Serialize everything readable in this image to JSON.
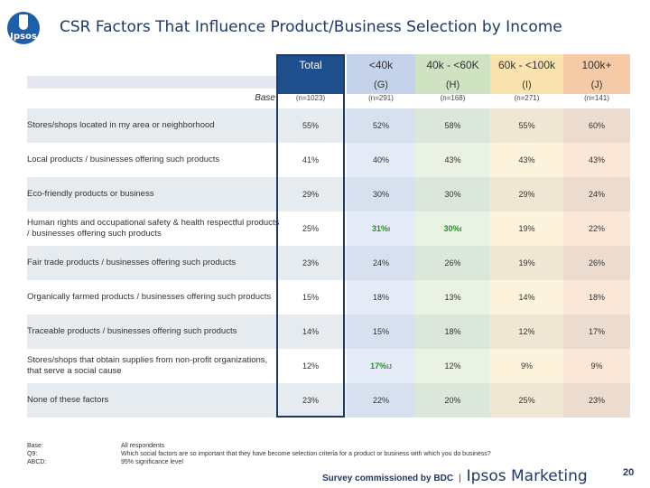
{
  "header": {
    "logo_text": "Ipsos",
    "title": "CSR Factors That Influence Product/Business Selection by Income"
  },
  "columns": [
    {
      "label": "Total",
      "letter": "",
      "base": "(n=1023)",
      "color": "#1f4e8c"
    },
    {
      "label": "<40k",
      "letter": "(G)",
      "base": "(n=291)",
      "color": "#c5d3ea"
    },
    {
      "label": "40k - <60K",
      "letter": "(H)",
      "base": "(n=168)",
      "color": "#cfe3c2"
    },
    {
      "label": "60k - <100k",
      "letter": "(I)",
      "base": "(n=271)",
      "color": "#fbe3b0"
    },
    {
      "label": "100k+",
      "letter": "(J)",
      "base": "(n=141)",
      "color": "#f5caa6"
    }
  ],
  "base_label": "Base",
  "rows": [
    {
      "label": "Stores/shops located in my area or neighborhood",
      "values": [
        "55%",
        "52%",
        "58%",
        "55%",
        "60%"
      ]
    },
    {
      "label": "Local products / businesses offering such products",
      "values": [
        "41%",
        "40%",
        "43%",
        "43%",
        "43%"
      ]
    },
    {
      "label": "Eco-friendly products or business",
      "values": [
        "29%",
        "30%",
        "30%",
        "29%",
        "24%"
      ]
    },
    {
      "label": "Human rights and occupational safety & health respectful products / businesses offering such products",
      "values": [
        "25%",
        "31%",
        "30%",
        "19%",
        "22%"
      ],
      "sig": {
        "1": "I",
        "2": "I"
      }
    },
    {
      "label": "Fair trade products / businesses offering such products",
      "values": [
        "23%",
        "24%",
        "26%",
        "19%",
        "26%"
      ]
    },
    {
      "label": "Organically farmed products / businesses offering such products",
      "values": [
        "15%",
        "18%",
        "13%",
        "14%",
        "18%"
      ]
    },
    {
      "label": "Traceable products / businesses offering such products",
      "values": [
        "14%",
        "15%",
        "18%",
        "12%",
        "17%"
      ]
    },
    {
      "label": "Stores/shops that obtain supplies from non-profit organizations, that serve a social cause",
      "values": [
        "12%",
        "17%",
        "12%",
        "9%",
        "9%"
      ],
      "sig": {
        "1": "IJ"
      }
    },
    {
      "label": "None of these factors",
      "values": [
        "23%",
        "22%",
        "20%",
        "25%",
        "23%"
      ]
    }
  ],
  "footer": {
    "base_key": "Base:",
    "q_key": "Q9:",
    "abcd_key": "ABCD:",
    "base_val": "All respondents",
    "q_val": "Which social factors are so important that they have become selection criteria for a product or business with which you do business?",
    "abcd_val": "95% significance level"
  },
  "brand": {
    "survey": "Survey commissioned by BDC",
    "separator": "|",
    "ipsos": "Ipsos Marketing"
  },
  "page_number": "20"
}
